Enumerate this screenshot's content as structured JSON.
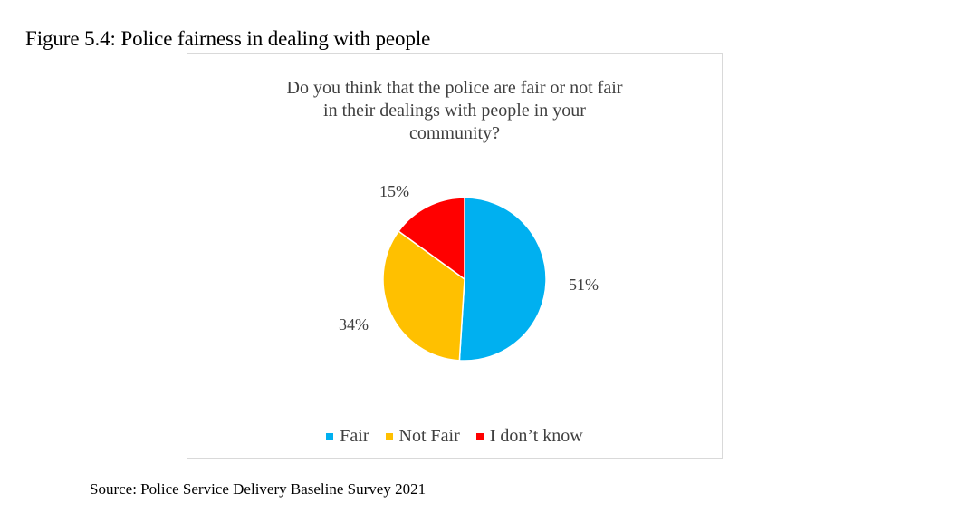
{
  "figure_caption": "Figure 5.4: Police fairness in dealing with people",
  "chart_data": {
    "type": "pie",
    "title_lines": [
      "Do you think that the police are fair or not fair",
      "in their dealings with people in your",
      "community?"
    ],
    "categories": [
      "Fair",
      "Not Fair",
      "I don’t know"
    ],
    "values": [
      51,
      34,
      15
    ],
    "value_labels": [
      "51%",
      "34%",
      "15%"
    ],
    "colors": [
      "#00b0f0",
      "#ffc000",
      "#ff0000"
    ],
    "legend_position": "bottom"
  },
  "source_note": "Source: Police Service Delivery Baseline Survey 2021"
}
